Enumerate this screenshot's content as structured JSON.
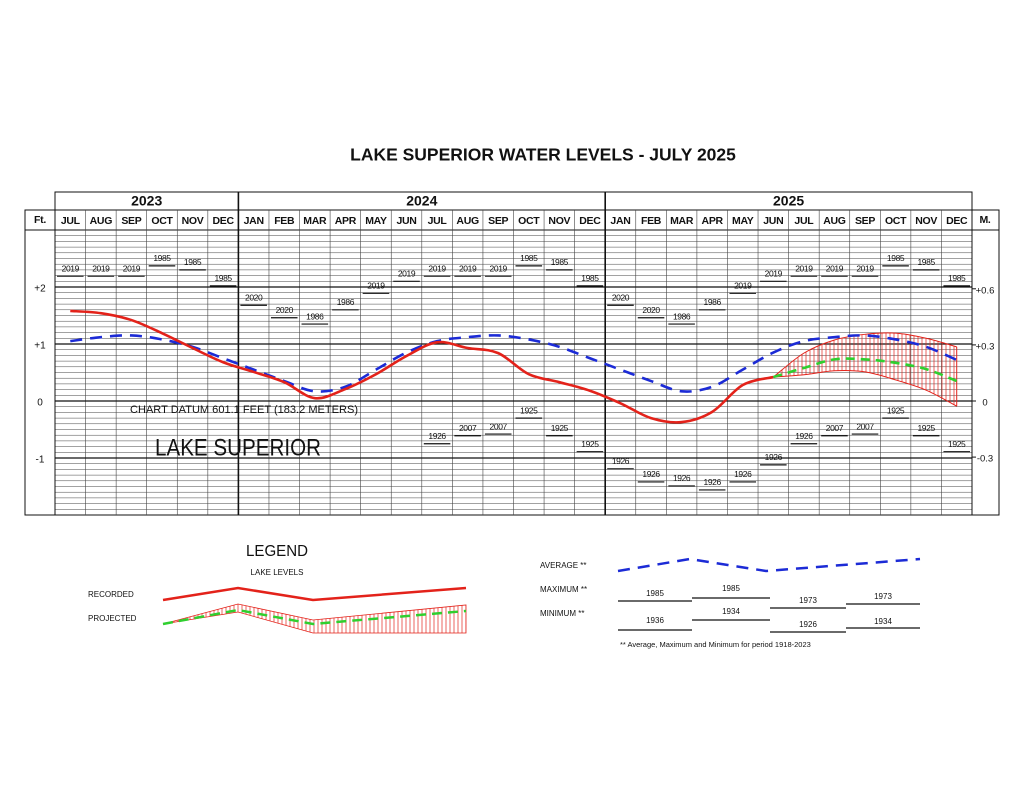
{
  "chart_data": {
    "type": "line",
    "title": "LAKE SUPERIOR WATER LEVELS - JULY 2025",
    "y_axis_label": "Ft.",
    "y2_axis_label": "M.",
    "years": [
      "2023",
      "2024",
      "2025"
    ],
    "categories": [
      "JUL",
      "AUG",
      "SEP",
      "OCT",
      "NOV",
      "DEC",
      "JAN",
      "FEB",
      "MAR",
      "APR",
      "MAY",
      "JUN",
      "JUL",
      "AUG",
      "SEP",
      "OCT",
      "NOV",
      "DEC",
      "JAN",
      "FEB",
      "MAR",
      "APR",
      "MAY",
      "JUN",
      "JUL",
      "AUG",
      "SEP",
      "OCT",
      "NOV",
      "DEC"
    ],
    "ylim": [
      -2,
      3
    ],
    "yticks": [
      -1,
      0,
      {
        "value": 1,
        "label": "+1"
      },
      {
        "value": 2,
        "label": "+2"
      }
    ],
    "y2lim": [
      -0.6096,
      0.9144
    ],
    "y2ticks": [
      -0.3,
      0,
      {
        "value": 0.3,
        "label": "+0.3"
      },
      {
        "value": 0.6,
        "label": "+0.6"
      }
    ],
    "minor_grid_step": 0.1,
    "series": [
      {
        "name": "RECORDED",
        "color": "#e3221a",
        "values": [
          1.58,
          1.54,
          1.42,
          1.19,
          0.93,
          0.68,
          0.51,
          0.33,
          0.05,
          0.21,
          0.47,
          0.79,
          1.03,
          0.93,
          0.84,
          0.47,
          0.33,
          0.18,
          -0.04,
          -0.3,
          -0.37,
          -0.19,
          0.28,
          0.42,
          null,
          null,
          null,
          null,
          null,
          null
        ]
      },
      {
        "name": "PROJECTED",
        "color": "#2fcf2f",
        "values": [
          null,
          null,
          null,
          null,
          null,
          null,
          null,
          null,
          null,
          null,
          null,
          null,
          null,
          null,
          null,
          null,
          null,
          null,
          null,
          null,
          null,
          null,
          null,
          0.42,
          0.58,
          0.73,
          0.73,
          0.67,
          0.56,
          0.35
        ]
      },
      {
        "name": "AVERAGE **",
        "color": "#1c2bd6",
        "values": [
          1.05,
          1.12,
          1.15,
          1.08,
          0.95,
          0.75,
          0.55,
          0.35,
          0.17,
          0.25,
          0.55,
          0.85,
          1.05,
          1.12,
          1.15,
          1.08,
          0.95,
          0.75,
          0.55,
          0.35,
          0.17,
          0.25,
          0.55,
          0.85,
          1.05,
          1.12,
          1.15,
          1.08,
          0.95,
          0.72
        ]
      }
    ],
    "projected_upper": [
      null,
      null,
      null,
      null,
      null,
      null,
      null,
      null,
      null,
      null,
      null,
      null,
      null,
      null,
      null,
      null,
      null,
      null,
      null,
      null,
      null,
      null,
      null,
      0.42,
      0.84,
      1.07,
      1.17,
      1.19,
      1.1,
      0.95
    ],
    "projected_lower": [
      null,
      null,
      null,
      null,
      null,
      null,
      null,
      null,
      null,
      null,
      null,
      null,
      null,
      null,
      null,
      null,
      null,
      null,
      null,
      null,
      null,
      null,
      null,
      0.42,
      0.46,
      0.53,
      0.51,
      0.37,
      0.19,
      -0.09
    ],
    "maximum": {
      "name": "MAXIMUM **",
      "values": [
        2.19,
        2.19,
        2.19,
        2.37,
        2.3,
        2.02,
        1.68,
        1.46,
        1.35,
        1.6,
        1.89,
        2.1,
        2.19,
        2.19,
        2.19,
        2.37,
        2.3,
        2.02,
        1.68,
        1.46,
        1.35,
        1.6,
        1.89,
        2.1,
        2.19,
        2.19,
        2.19,
        2.37,
        2.3,
        2.02
      ],
      "years": [
        "2019",
        "2019",
        "2019",
        "1985",
        "1985",
        "1985",
        "2020",
        "2020",
        "1986",
        "1986",
        "2019",
        "2019",
        "2019",
        "2019",
        "2019",
        "1985",
        "1985",
        "1985",
        "2020",
        "2020",
        "1986",
        "1986",
        "2019",
        "2019",
        "2019",
        "2019",
        "2019",
        "1985",
        "1985",
        "1985"
      ]
    },
    "minimum": {
      "name": "MINIMUM **",
      "values": [
        null,
        null,
        null,
        null,
        null,
        null,
        null,
        null,
        null,
        null,
        null,
        null,
        -0.75,
        -0.61,
        -0.58,
        -0.3,
        -0.61,
        -0.89,
        -1.19,
        -1.42,
        -1.49,
        -1.56,
        -1.42,
        -1.12,
        -0.75,
        -0.61,
        -0.58,
        -0.3,
        -0.61,
        -0.89
      ],
      "years": [
        null,
        null,
        null,
        null,
        null,
        null,
        null,
        null,
        null,
        null,
        null,
        null,
        "1926",
        "2007",
        "2007",
        "1925",
        "1925",
        "1925",
        "1926",
        "1926",
        "1926",
        "1926",
        "1926",
        "1926",
        "1926",
        "2007",
        "2007",
        "1925",
        "1925",
        "1925"
      ]
    },
    "annotations": {
      "datum": "CHART DATUM  601.1 FEET (183.2 METERS)",
      "lake": "LAKE SUPERIOR"
    },
    "legend": {
      "title": "LEGEND",
      "subtitle": "LAKE LEVELS",
      "max_sample_years": [
        "1985",
        "1985",
        "1973",
        "1973"
      ],
      "min_sample_years": [
        "1936",
        "1934",
        "1926",
        "1934"
      ],
      "footnote": "** Average, Maximum and Minimum for period 1918-2023"
    }
  }
}
